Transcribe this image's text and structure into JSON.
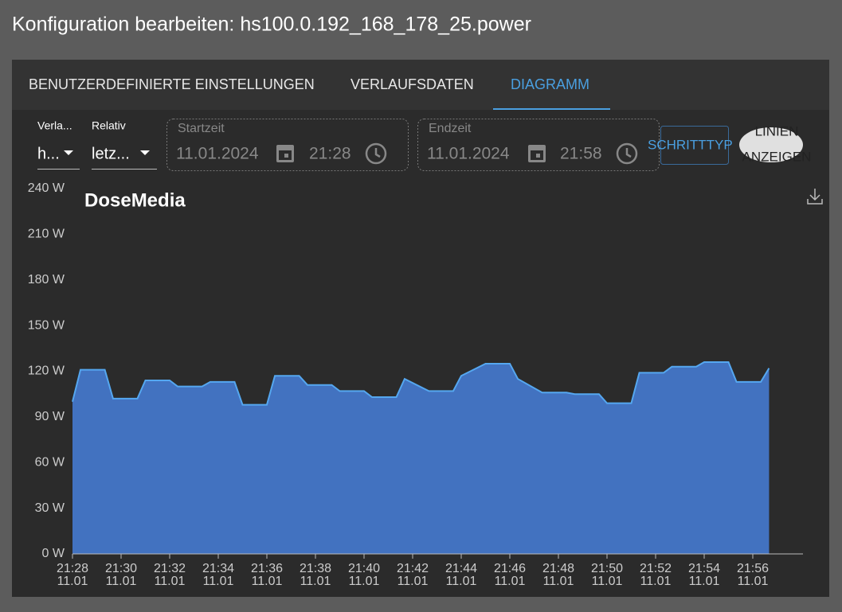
{
  "header": {
    "title": "Konfiguration bearbeiten: hs100.0.192_168_178_25.power"
  },
  "tabs": [
    "BENUTZERDEFINIERTE EINSTELLUNGEN",
    "VERLAUFSDATEN",
    "DIAGRAMM"
  ],
  "controls": {
    "history": {
      "label": "Verla...",
      "value": "h..."
    },
    "relative": {
      "label": "Relativ",
      "value": "letz..."
    },
    "start": {
      "label": "Startzeit",
      "date": "11.01.2024",
      "time": "21:28"
    },
    "end": {
      "label": "Endzeit",
      "date": "11.01.2024",
      "time": "21:58"
    },
    "step_button": "SCHRITTTYP",
    "toggle": [
      "LINIEN",
      "ANZEIGEN"
    ]
  },
  "chart_data": {
    "type": "area",
    "title": "DoseMedia",
    "color": "#4272c0",
    "line_color": "#55a7f0",
    "grid": false,
    "x": [
      1288,
      1288.33,
      1289.33,
      1289.67,
      1290.67,
      1291,
      1292,
      1292.33,
      1293.33,
      1293.67,
      1294.67,
      1295,
      1296,
      1296.33,
      1297.33,
      1297.67,
      1298.67,
      1299,
      1300,
      1300.33,
      1301.33,
      1301.67,
      1302.67,
      1303.67,
      1304,
      1305,
      1306,
      1306.33,
      1307.33,
      1308.33,
      1308.67,
      1309.67,
      1310,
      1311,
      1311.33,
      1312.33,
      1312.67,
      1313.67,
      1314,
      1315,
      1315.33,
      1316.33,
      1316.67
    ],
    "values": [
      100,
      121,
      121,
      102,
      102,
      114,
      114,
      110,
      110,
      113,
      113,
      98,
      98,
      117,
      117,
      111,
      111,
      107,
      107,
      103,
      103,
      115,
      107,
      107,
      117,
      125,
      125,
      115,
      106,
      106,
      105,
      105,
      99,
      99,
      119,
      119,
      123,
      123,
      126,
      126,
      113,
      113,
      122
    ],
    "xlim": [
      1288,
      1318
    ],
    "xticks": [
      {
        "value": 1288,
        "label": "21:28",
        "date": "11.01"
      },
      {
        "value": 1290,
        "label": "21:30",
        "date": "11.01"
      },
      {
        "value": 1292,
        "label": "21:32",
        "date": "11.01"
      },
      {
        "value": 1294,
        "label": "21:34",
        "date": "11.01"
      },
      {
        "value": 1296,
        "label": "21:36",
        "date": "11.01"
      },
      {
        "value": 1298,
        "label": "21:38",
        "date": "11.01"
      },
      {
        "value": 1300,
        "label": "21:40",
        "date": "11.01"
      },
      {
        "value": 1302,
        "label": "21:42",
        "date": "11.01"
      },
      {
        "value": 1304,
        "label": "21:44",
        "date": "11.01"
      },
      {
        "value": 1306,
        "label": "21:46",
        "date": "11.01"
      },
      {
        "value": 1308,
        "label": "21:48",
        "date": "11.01"
      },
      {
        "value": 1310,
        "label": "21:50",
        "date": "11.01"
      },
      {
        "value": 1312,
        "label": "21:52",
        "date": "11.01"
      },
      {
        "value": 1314,
        "label": "21:54",
        "date": "11.01"
      },
      {
        "value": 1316,
        "label": "21:56",
        "date": "11.01"
      }
    ],
    "ylim": [
      0,
      240
    ],
    "yticks": [
      {
        "value": 0,
        "label": "0 W"
      },
      {
        "value": 30,
        "label": "30 W"
      },
      {
        "value": 60,
        "label": "60 W"
      },
      {
        "value": 90,
        "label": "90 W"
      },
      {
        "value": 120,
        "label": "120 W"
      },
      {
        "value": 150,
        "label": "150 W"
      },
      {
        "value": 180,
        "label": "180 W"
      },
      {
        "value": 210,
        "label": "210 W"
      },
      {
        "value": 240,
        "label": "240 W"
      }
    ]
  }
}
